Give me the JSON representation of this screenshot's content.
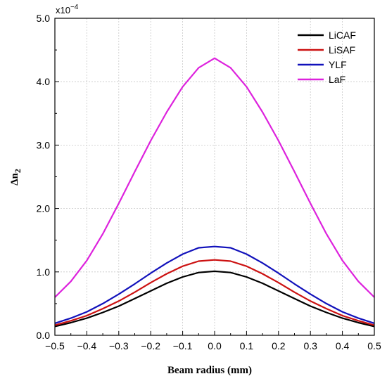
{
  "chart_data": {
    "type": "line",
    "xlabel": "Beam radius (mm)",
    "ylabel": "Δn",
    "ylabel_subscript": "2",
    "y_multiplier": "x10",
    "y_multiplier_exp": "−4",
    "xlim": [
      -0.5,
      0.5
    ],
    "ylim": [
      0.0,
      5.0
    ],
    "x_ticks": [
      -0.5,
      -0.4,
      -0.3,
      -0.2,
      -0.1,
      0.0,
      0.1,
      0.2,
      0.3,
      0.4,
      0.5
    ],
    "x_tick_labels": [
      "−0.5",
      "−0.4",
      "−0.3",
      "−0.2",
      "−0.1",
      "0.0",
      "0.1",
      "0.2",
      "0.3",
      "0.4",
      "0.5"
    ],
    "y_ticks": [
      0.0,
      1.0,
      2.0,
      3.0,
      4.0,
      5.0
    ],
    "y_tick_labels": [
      "0.0",
      "1.0",
      "2.0",
      "3.0",
      "4.0",
      "5.0"
    ],
    "grid": true,
    "legend_position": "top-right",
    "x": [
      -0.5,
      -0.45,
      -0.4,
      -0.35,
      -0.3,
      -0.25,
      -0.2,
      -0.15,
      -0.1,
      -0.05,
      0.0,
      0.05,
      0.1,
      0.15,
      0.2,
      0.25,
      0.3,
      0.35,
      0.4,
      0.45,
      0.5
    ],
    "series": [
      {
        "name": "LiCAF",
        "color": "#000000",
        "values": [
          0.14,
          0.2,
          0.27,
          0.36,
          0.46,
          0.58,
          0.7,
          0.82,
          0.92,
          0.99,
          1.01,
          0.99,
          0.92,
          0.82,
          0.7,
          0.58,
          0.46,
          0.36,
          0.27,
          0.2,
          0.14
        ]
      },
      {
        "name": "LiSAF",
        "color": "#cc1111",
        "values": [
          0.16,
          0.23,
          0.31,
          0.42,
          0.54,
          0.68,
          0.83,
          0.97,
          1.09,
          1.17,
          1.19,
          1.17,
          1.09,
          0.97,
          0.83,
          0.68,
          0.54,
          0.42,
          0.31,
          0.23,
          0.16
        ]
      },
      {
        "name": "YLF",
        "color": "#1111bb",
        "values": [
          0.19,
          0.27,
          0.37,
          0.5,
          0.65,
          0.81,
          0.98,
          1.14,
          1.28,
          1.38,
          1.4,
          1.38,
          1.28,
          1.14,
          0.98,
          0.81,
          0.65,
          0.5,
          0.37,
          0.27,
          0.19
        ]
      },
      {
        "name": "LaF",
        "color": "#dd22dd",
        "values": [
          0.6,
          0.85,
          1.18,
          1.6,
          2.08,
          2.58,
          3.07,
          3.52,
          3.92,
          4.22,
          4.37,
          4.22,
          3.92,
          3.52,
          3.07,
          2.58,
          2.08,
          1.6,
          1.18,
          0.85,
          0.6
        ]
      }
    ]
  }
}
